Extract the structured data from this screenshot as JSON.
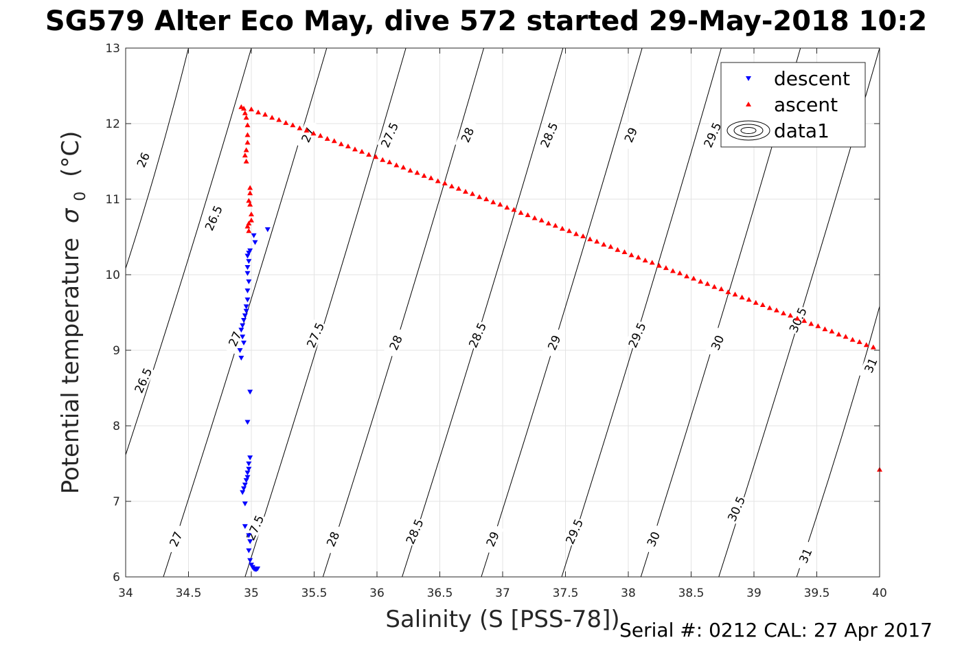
{
  "chart_data": {
    "type": "scatter",
    "title": "SG579 Alter Eco May, dive 572 started 29-May-2018 10:2",
    "xlabel": "Salinity (S [PSS-78])",
    "ylabel_main": "Potential temperature",
    "ylabel_sigma": "σ",
    "ylabel_sub": "0",
    "ylabel_unit": "(°C)",
    "footer": "Serial #: 0212  CAL: 27 Apr 2017",
    "xlim": [
      34,
      40
    ],
    "ylim": [
      6,
      13
    ],
    "grid": true,
    "legend_position": "top-right",
    "x_ticks": [
      {
        "value": 34,
        "label": "34"
      },
      {
        "value": 34.5,
        "label": "34.5"
      },
      {
        "value": 35,
        "label": "35"
      },
      {
        "value": 35.5,
        "label": "35.5"
      },
      {
        "value": 36,
        "label": "36"
      },
      {
        "value": 36.5,
        "label": "36.5"
      },
      {
        "value": 37,
        "label": "37"
      },
      {
        "value": 37.5,
        "label": "37.5"
      },
      {
        "value": 38,
        "label": "38"
      },
      {
        "value": 38.5,
        "label": "38.5"
      },
      {
        "value": 39,
        "label": "39"
      },
      {
        "value": 39.5,
        "label": "39.5"
      },
      {
        "value": 40,
        "label": "40"
      }
    ],
    "y_ticks": [
      {
        "value": 6,
        "label": "6"
      },
      {
        "value": 7,
        "label": "7"
      },
      {
        "value": 8,
        "label": "8"
      },
      {
        "value": 9,
        "label": "9"
      },
      {
        "value": 10,
        "label": "10"
      },
      {
        "value": 11,
        "label": "11"
      },
      {
        "value": 12,
        "label": "12"
      },
      {
        "value": 13,
        "label": "13"
      }
    ],
    "legend": [
      {
        "label": "descent",
        "marker": "triangle-down",
        "color": "#0000ff"
      },
      {
        "label": "ascent",
        "marker": "triangle-up",
        "color": "#ff0000"
      },
      {
        "label": "data1",
        "marker": "contour-ellipse",
        "color": "#000000"
      }
    ],
    "contour_lines": [
      {
        "level": 26,
        "x_at_6": 33.3,
        "x_at_13": 34.5
      },
      {
        "level": 26.5,
        "x_at_6": 33.7,
        "x_at_13": 35.0
      },
      {
        "level": 27,
        "x_at_6": 34.3,
        "x_at_13": 35.6
      },
      {
        "level": 27.5,
        "x_at_6": 34.95,
        "x_at_13": 36.23
      },
      {
        "level": 28,
        "x_at_6": 35.57,
        "x_at_13": 36.85
      },
      {
        "level": 28.5,
        "x_at_6": 36.2,
        "x_at_13": 37.48
      },
      {
        "level": 29,
        "x_at_6": 36.83,
        "x_at_13": 38.11
      },
      {
        "level": 29.5,
        "x_at_6": 37.47,
        "x_at_13": 38.74
      },
      {
        "level": 30,
        "x_at_6": 38.1,
        "x_at_13": 39.37
      },
      {
        "level": 30.5,
        "x_at_6": 38.72,
        "x_at_13": 40.0
      },
      {
        "level": 31,
        "x_at_6": 39.34,
        "x_at_13": 40.63
      }
    ],
    "contour_labels": [
      {
        "text": "26",
        "x": 34.14,
        "y": 11.52
      },
      {
        "text": "26.5",
        "x": 34.7,
        "y": 10.75
      },
      {
        "text": "27",
        "x": 35.45,
        "y": 11.85
      },
      {
        "text": "27.5",
        "x": 36.1,
        "y": 11.85
      },
      {
        "text": "28",
        "x": 36.72,
        "y": 11.85
      },
      {
        "text": "28.5",
        "x": 37.37,
        "y": 11.85
      },
      {
        "text": "29",
        "x": 38.02,
        "y": 11.85
      },
      {
        "text": "29.5",
        "x": 38.67,
        "y": 11.85
      },
      {
        "text": "30",
        "x": 39.3,
        "y": 11.85
      },
      {
        "text": "26.5",
        "x": 34.14,
        "y": 8.6
      },
      {
        "text": "27",
        "x": 34.87,
        "y": 9.15
      },
      {
        "text": "27.5",
        "x": 35.51,
        "y": 9.2
      },
      {
        "text": "28",
        "x": 36.15,
        "y": 9.1
      },
      {
        "text": "28.5",
        "x": 36.8,
        "y": 9.2
      },
      {
        "text": "29",
        "x": 37.41,
        "y": 9.1
      },
      {
        "text": "29.5",
        "x": 38.07,
        "y": 9.2
      },
      {
        "text": "30",
        "x": 38.71,
        "y": 9.1
      },
      {
        "text": "30.5",
        "x": 39.35,
        "y": 9.4
      },
      {
        "text": "31",
        "x": 39.93,
        "y": 8.8
      },
      {
        "text": "27",
        "x": 34.4,
        "y": 6.5
      },
      {
        "text": "27.5",
        "x": 35.03,
        "y": 6.65
      },
      {
        "text": "28",
        "x": 35.65,
        "y": 6.5
      },
      {
        "text": "28.5",
        "x": 36.3,
        "y": 6.6
      },
      {
        "text": "29",
        "x": 36.92,
        "y": 6.5
      },
      {
        "text": "29.5",
        "x": 37.57,
        "y": 6.6
      },
      {
        "text": "30",
        "x": 38.2,
        "y": 6.5
      },
      {
        "text": "30.5",
        "x": 38.86,
        "y": 6.9
      },
      {
        "text": "31",
        "x": 39.41,
        "y": 6.28
      }
    ],
    "series": [
      {
        "name": "descent",
        "marker": "triangle-down",
        "color": "#0000ff",
        "points": [
          [
            35.13,
            10.6
          ],
          [
            35.02,
            10.52
          ],
          [
            35.03,
            10.43
          ],
          [
            34.99,
            10.32
          ],
          [
            34.98,
            10.29
          ],
          [
            34.97,
            10.25
          ],
          [
            34.98,
            10.18
          ],
          [
            34.97,
            10.1
          ],
          [
            34.97,
            10.02
          ],
          [
            34.98,
            9.91
          ],
          [
            34.97,
            9.79
          ],
          [
            34.97,
            9.67
          ],
          [
            34.96,
            9.58
          ],
          [
            34.96,
            9.52
          ],
          [
            34.95,
            9.46
          ],
          [
            34.94,
            9.4
          ],
          [
            34.93,
            9.33
          ],
          [
            34.92,
            9.27
          ],
          [
            34.93,
            9.18
          ],
          [
            34.94,
            9.1
          ],
          [
            34.91,
            9.0
          ],
          [
            34.92,
            8.9
          ],
          [
            34.99,
            8.45
          ],
          [
            34.97,
            8.05
          ],
          [
            34.99,
            7.58
          ],
          [
            34.98,
            7.5
          ],
          [
            34.98,
            7.43
          ],
          [
            34.97,
            7.38
          ],
          [
            34.97,
            7.32
          ],
          [
            34.96,
            7.28
          ],
          [
            34.95,
            7.22
          ],
          [
            34.94,
            7.17
          ],
          [
            34.93,
            7.12
          ],
          [
            34.95,
            6.97
          ],
          [
            34.95,
            6.67
          ],
          [
            34.98,
            6.55
          ],
          [
            34.99,
            6.47
          ],
          [
            34.98,
            6.35
          ],
          [
            34.99,
            6.22
          ],
          [
            35.0,
            6.16
          ],
          [
            35.01,
            6.13
          ],
          [
            35.02,
            6.11
          ],
          [
            35.03,
            6.1
          ],
          [
            35.04,
            6.1
          ],
          [
            35.05,
            6.11
          ]
        ]
      },
      {
        "name": "ascent",
        "marker": "triangle-up",
        "color": "#ff0000",
        "points": [
          [
            34.92,
            12.22
          ],
          [
            34.94,
            12.2
          ],
          [
            34.95,
            12.14
          ],
          [
            34.96,
            12.08
          ],
          [
            34.97,
            11.98
          ],
          [
            34.97,
            11.85
          ],
          [
            34.97,
            11.75
          ],
          [
            34.96,
            11.65
          ],
          [
            34.95,
            11.58
          ],
          [
            34.96,
            11.5
          ],
          [
            34.99,
            11.15
          ],
          [
            34.99,
            11.08
          ],
          [
            34.98,
            10.98
          ],
          [
            34.99,
            10.93
          ],
          [
            35.0,
            10.8
          ],
          [
            35.0,
            10.72
          ],
          [
            34.98,
            10.68
          ],
          [
            34.97,
            10.64
          ],
          [
            34.98,
            10.58
          ],
          [
            35.0,
            12.19
          ],
          [
            35.055,
            12.15
          ],
          [
            35.11,
            12.12
          ],
          [
            35.165,
            12.08
          ],
          [
            35.22,
            12.05
          ],
          [
            35.275,
            12.01
          ],
          [
            35.33,
            11.98
          ],
          [
            35.385,
            11.94
          ],
          [
            35.44,
            11.91
          ],
          [
            35.495,
            11.87
          ],
          [
            35.55,
            11.84
          ],
          [
            35.605,
            11.8
          ],
          [
            35.66,
            11.77
          ],
          [
            35.715,
            11.73
          ],
          [
            35.77,
            11.7
          ],
          [
            35.825,
            11.66
          ],
          [
            35.88,
            11.63
          ],
          [
            35.935,
            11.59
          ],
          [
            35.99,
            11.56
          ],
          [
            36.045,
            11.52
          ],
          [
            36.1,
            11.49
          ],
          [
            36.155,
            11.45
          ],
          [
            36.21,
            11.42
          ],
          [
            36.265,
            11.38
          ],
          [
            36.32,
            11.35
          ],
          [
            36.375,
            11.31
          ],
          [
            36.43,
            11.28
          ],
          [
            36.485,
            11.24
          ],
          [
            36.54,
            11.21
          ],
          [
            36.595,
            11.17
          ],
          [
            36.65,
            11.14
          ],
          [
            36.705,
            11.1
          ],
          [
            36.76,
            11.07
          ],
          [
            36.815,
            11.03
          ],
          [
            36.87,
            11.0
          ],
          [
            36.925,
            10.96
          ],
          [
            36.98,
            10.93
          ],
          [
            37.035,
            10.89
          ],
          [
            37.09,
            10.86
          ],
          [
            37.145,
            10.82
          ],
          [
            37.2,
            10.79
          ],
          [
            37.255,
            10.75
          ],
          [
            37.31,
            10.72
          ],
          [
            37.365,
            10.68
          ],
          [
            37.42,
            10.65
          ],
          [
            37.475,
            10.61
          ],
          [
            37.53,
            10.58
          ],
          [
            37.585,
            10.54
          ],
          [
            37.64,
            10.51
          ],
          [
            37.695,
            10.47
          ],
          [
            37.75,
            10.44
          ],
          [
            37.805,
            10.4
          ],
          [
            37.86,
            10.37
          ],
          [
            37.915,
            10.33
          ],
          [
            37.97,
            10.3
          ],
          [
            38.025,
            10.26
          ],
          [
            38.08,
            10.23
          ],
          [
            38.135,
            10.19
          ],
          [
            38.19,
            10.16
          ],
          [
            38.245,
            10.12
          ],
          [
            38.3,
            10.09
          ],
          [
            38.355,
            10.05
          ],
          [
            38.41,
            10.02
          ],
          [
            38.465,
            9.98
          ],
          [
            38.52,
            9.95
          ],
          [
            38.575,
            9.91
          ],
          [
            38.63,
            9.88
          ],
          [
            38.685,
            9.84
          ],
          [
            38.74,
            9.81
          ],
          [
            38.795,
            9.77
          ],
          [
            38.85,
            9.74
          ],
          [
            38.905,
            9.7
          ],
          [
            38.96,
            9.67
          ],
          [
            39.015,
            9.63
          ],
          [
            39.07,
            9.6
          ],
          [
            39.125,
            9.56
          ],
          [
            39.18,
            9.53
          ],
          [
            39.235,
            9.49
          ],
          [
            39.29,
            9.46
          ],
          [
            39.345,
            9.42
          ],
          [
            39.4,
            9.39
          ],
          [
            39.455,
            9.35
          ],
          [
            39.51,
            9.32
          ],
          [
            39.565,
            9.28
          ],
          [
            39.62,
            9.25
          ],
          [
            39.675,
            9.21
          ],
          [
            39.73,
            9.18
          ],
          [
            39.785,
            9.14
          ],
          [
            39.84,
            9.11
          ],
          [
            39.895,
            9.07
          ],
          [
            39.95,
            9.04
          ],
          [
            40.0,
            7.42
          ]
        ]
      }
    ]
  }
}
